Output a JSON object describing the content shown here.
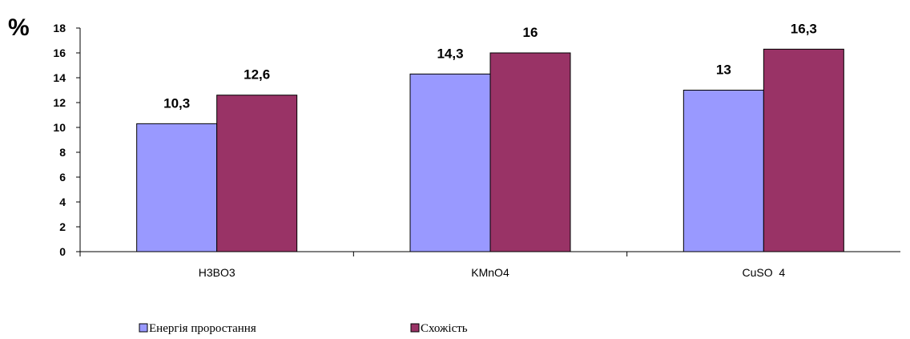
{
  "chart_data": {
    "type": "bar",
    "title": "",
    "xlabel": "",
    "ylabel": "%",
    "categories": [
      "H3BO3",
      "KMnO4",
      "CuSO  4"
    ],
    "series": [
      {
        "name": "Енергія проростання",
        "values": [
          10.3,
          14.3,
          13
        ],
        "labels": [
          "10,3",
          "14,3",
          "13"
        ],
        "color": "#9999ff"
      },
      {
        "name": "Схожість",
        "values": [
          12.6,
          16,
          16.3
        ],
        "labels": [
          "12,6",
          "16",
          "16,3"
        ],
        "color": "#993366"
      }
    ],
    "ylim": [
      0,
      18
    ],
    "yticks": [
      0,
      2,
      4,
      6,
      8,
      10,
      12,
      14,
      16,
      18
    ],
    "grid": false,
    "legend_position": "bottom"
  }
}
